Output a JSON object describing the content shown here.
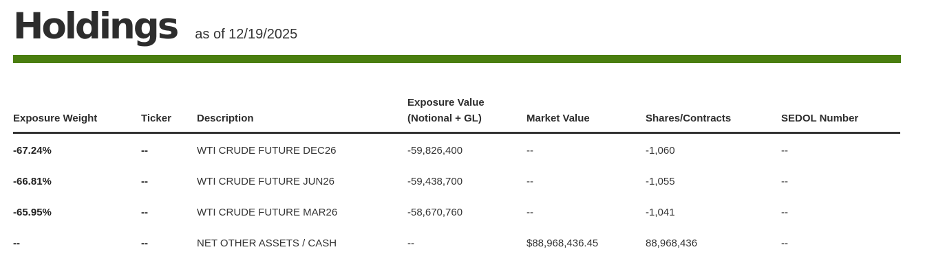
{
  "header": {
    "title": "Holdings",
    "as_of": "as of 12/19/2025"
  },
  "colors": {
    "accent_bar": "#4a7e0f",
    "text": "#2d2d2d",
    "rule": "#333333"
  },
  "table": {
    "columns": {
      "exposure_weight": "Exposure Weight",
      "ticker": "Ticker",
      "description": "Description",
      "exposure_value_line1": "Exposure Value",
      "exposure_value_line2": "(Notional + GL)",
      "market_value": "Market Value",
      "shares_contracts": "Shares/Contracts",
      "sedol_number": "SEDOL Number"
    },
    "rows": [
      {
        "exposure_weight": "-67.24%",
        "ticker": "--",
        "description": "WTI CRUDE FUTURE DEC26",
        "exposure_value": "-59,826,400",
        "market_value": "--",
        "shares_contracts": "-1,060",
        "sedol_number": "--"
      },
      {
        "exposure_weight": "-66.81%",
        "ticker": "--",
        "description": "WTI CRUDE FUTURE JUN26",
        "exposure_value": "-59,438,700",
        "market_value": "--",
        "shares_contracts": "-1,055",
        "sedol_number": "--"
      },
      {
        "exposure_weight": "-65.95%",
        "ticker": "--",
        "description": "WTI CRUDE FUTURE MAR26",
        "exposure_value": "-58,670,760",
        "market_value": "--",
        "shares_contracts": "-1,041",
        "sedol_number": "--"
      },
      {
        "exposure_weight": "--",
        "ticker": "--",
        "description": "NET OTHER ASSETS / CASH",
        "exposure_value": "--",
        "market_value": "$88,968,436.45",
        "shares_contracts": "88,968,436",
        "sedol_number": "--"
      }
    ]
  }
}
